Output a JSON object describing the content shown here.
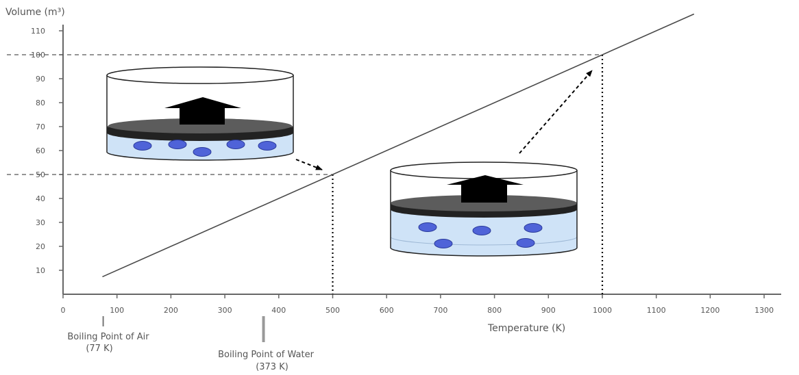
{
  "chart_data": {
    "type": "line",
    "ylabel": "Volume (m³)",
    "xlabel": "Temperature (K)",
    "xlim": [
      0,
      1350
    ],
    "ylim": [
      0,
      110
    ],
    "x_ticks": [
      0,
      100,
      200,
      300,
      400,
      500,
      600,
      700,
      800,
      900,
      1000,
      1100,
      1200,
      1300
    ],
    "y_ticks": [
      10,
      20,
      30,
      40,
      50,
      60,
      70,
      80,
      90,
      100,
      110
    ],
    "series": [
      {
        "x": [
          73,
          1170
        ],
        "y": [
          7.3,
          117
        ]
      }
    ],
    "reference_points": [
      {
        "x": 500,
        "y": 50
      },
      {
        "x": 1000,
        "y": 100
      }
    ],
    "annotations": [
      {
        "x": 77,
        "line1": "Boiling Point of Air",
        "line2": "(77 K)"
      },
      {
        "x": 373,
        "line1": "Boiling Point of Water",
        "line2": "(373 K)"
      }
    ],
    "colors": {
      "line": "#4a4a4a",
      "water": "#cfe3f7",
      "particle": "#4f63d8",
      "piston": "#555555",
      "arrow": "#000000"
    }
  }
}
